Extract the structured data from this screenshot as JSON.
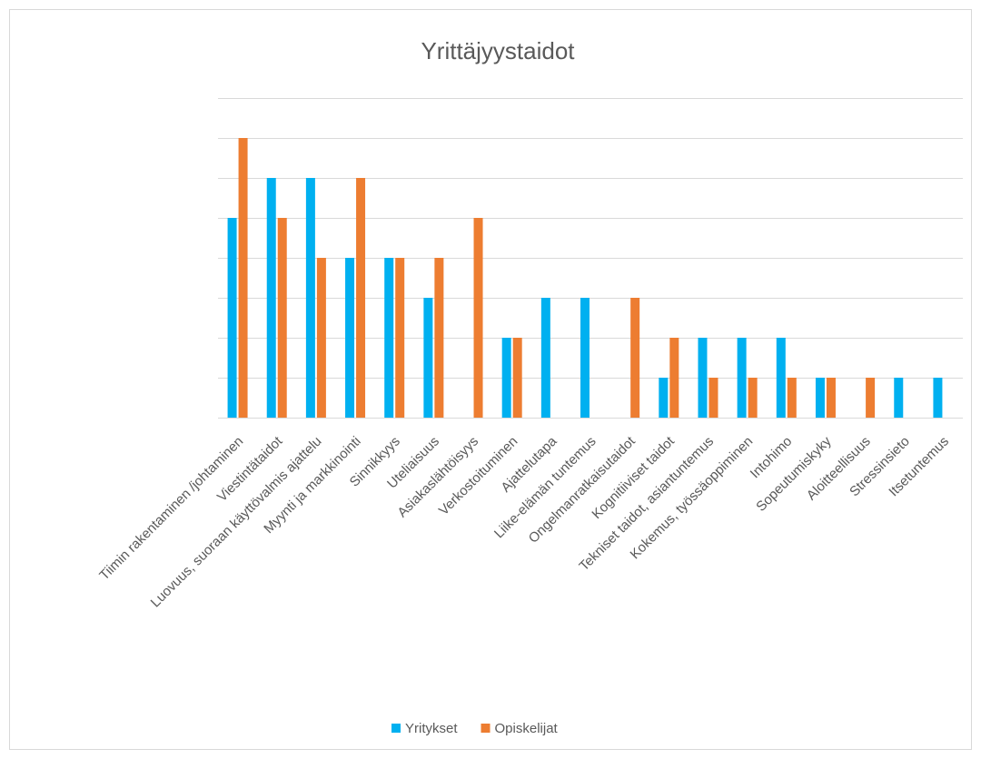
{
  "chart_data": {
    "type": "bar",
    "title": "Yrittäjyystaidot",
    "categories": [
      "Tiimin rakentaminen /johtaminen",
      "Viestintätaidot",
      "Luovuus, suoraan käyttövalmis ajattelu",
      "Myynti ja markkinointi",
      "Sinnikkyys",
      "Uteliaisuus",
      "Asiakaslähtöisyys",
      "Verkostoituminen",
      "Ajattelutapa",
      "Liike-elämän tuntemus",
      "Ongelmanratkaisutaidot",
      "Kognitiiviset taidot",
      "Tekniset taidot, asiantuntemus",
      "Kokemus, työssäoppiminen",
      "Intohimo",
      "Sopeutumiskyky",
      "Aloitteellisuus",
      "Stressinsieto",
      "Itsetuntemus"
    ],
    "series": [
      {
        "name": "Yritykset",
        "color": "#00b0f0",
        "values": [
          5,
          6,
          6,
          4,
          4,
          3,
          0,
          2,
          3,
          3,
          0,
          1,
          2,
          2,
          2,
          1,
          0,
          1,
          1
        ]
      },
      {
        "name": "Opiskelijat",
        "color": "#ed7d31",
        "values": [
          7,
          5,
          4,
          6,
          4,
          4,
          5,
          2,
          0,
          0,
          3,
          2,
          1,
          1,
          1,
          1,
          1,
          0,
          0
        ]
      }
    ],
    "ylim": [
      0,
      8
    ],
    "yticks": [
      0,
      1,
      2,
      3,
      4,
      5,
      6,
      7,
      8
    ],
    "grid": true,
    "legend": "bottom"
  }
}
